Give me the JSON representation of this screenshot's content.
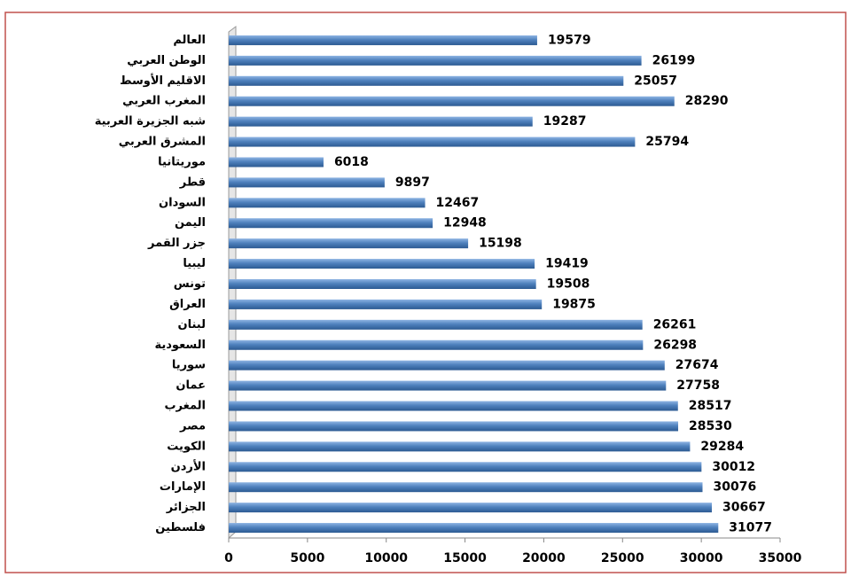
{
  "chart_data": {
    "type": "bar",
    "orientation": "horizontal",
    "categories": [
      "العالم",
      "الوطن العربي",
      "الاقليم الأوسط",
      "المغرب العربي",
      "شبه الجزيرة العربية",
      "المشرق العربي",
      "موريتانيا",
      "قطر",
      "السودان",
      "اليمن",
      "جزر القمر",
      "ليبيا",
      "تونس",
      "العراق",
      "لبنان",
      "السعودية",
      "سوريا",
      "عمان",
      "المغرب",
      "مصر",
      "الكويت",
      "الأردن",
      "الإمارات",
      "الجزائر",
      "فلسطين"
    ],
    "values": [
      19579,
      26199,
      25057,
      28290,
      19287,
      25794,
      6018,
      9897,
      12467,
      12948,
      15198,
      19419,
      19508,
      19875,
      26261,
      26298,
      27674,
      27758,
      28517,
      28530,
      29284,
      30012,
      30076,
      30667,
      31077
    ],
    "color": "#4f81bd",
    "xlim": [
      0,
      35000
    ],
    "xticks": [
      0,
      5000,
      10000,
      15000,
      20000,
      25000,
      30000,
      35000
    ],
    "grid": false
  }
}
